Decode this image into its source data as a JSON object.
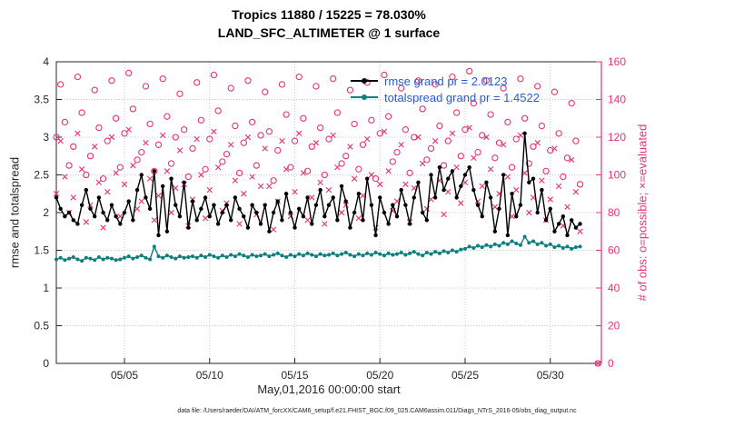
{
  "figure": {
    "title_line1": "Tropics 11880 / 15225 = 78.030%",
    "title_line2": "LAND_SFC_ALTIMETER @ 1 surface",
    "footer": "data file: /Users/raeder/DAI/ATM_forcXX/CAM6_setup/f.e21.FHIST_BGC.f09_025.CAM6assim.011/Diags_NTrS_2016-05/obs_diag_output.nc"
  },
  "legend": {
    "rmse_label": "rmse grand pr = 2.0123",
    "totalspread_label": "totalspread grand pr = 1.4522"
  },
  "colors": {
    "rmse": "#000000",
    "totalspread": "#0d7f7f",
    "obs": "#e8336e",
    "legend_text": "#2a5bd7",
    "grid": "#c9c9c9",
    "axis": "#262626"
  },
  "chart_data": {
    "type": "line",
    "title": "Tropics 11880 / 15225 = 78.030%",
    "subtitle": "LAND_SFC_ALTIMETER @ 1 surface",
    "x_axis": {
      "label": "May,01,2016 00:00:00 start",
      "range": [
        1,
        33
      ],
      "ticks": [
        {
          "x": 5,
          "label": "05/05"
        },
        {
          "x": 10,
          "label": "05/10"
        },
        {
          "x": 15,
          "label": "05/15"
        },
        {
          "x": 20,
          "label": "05/20"
        },
        {
          "x": 25,
          "label": "05/25"
        },
        {
          "x": 30,
          "label": "05/30"
        }
      ]
    },
    "y_left": {
      "label": "rmse and totalspread",
      "range": [
        0,
        4
      ],
      "ticks": [
        0,
        0.5,
        1,
        1.5,
        2,
        2.5,
        3,
        3.5,
        4
      ]
    },
    "y_right": {
      "label": "# of obs: o=possible; ×=evaluated",
      "range": [
        0,
        160
      ],
      "ticks": [
        0,
        20,
        40,
        60,
        80,
        100,
        120,
        140,
        160
      ]
    },
    "time": {
      "start": 1,
      "step": 0.25,
      "n": 124
    },
    "series": [
      {
        "name": "rmse",
        "axis": "left",
        "marker": "dot",
        "grand_mean": 2.0123,
        "values": [
          2.2,
          2.05,
          1.95,
          2.0,
          1.9,
          1.85,
          2.1,
          2.3,
          2.05,
          1.95,
          2.2,
          2.0,
          1.9,
          2.1,
          1.95,
          1.85,
          2.0,
          2.15,
          1.9,
          2.3,
          2.5,
          2.2,
          2.05,
          2.55,
          1.7,
          2.35,
          1.75,
          2.45,
          2.1,
          1.95,
          2.4,
          1.8,
          2.15,
          1.9,
          2.05,
          2.2,
          1.95,
          2.1,
          1.85,
          2.0,
          2.1,
          1.9,
          2.2,
          2.05,
          1.95,
          1.8,
          2.1,
          2.0,
          1.85,
          2.1,
          1.75,
          2.0,
          2.15,
          1.9,
          2.25,
          2.0,
          1.8,
          2.05,
          1.95,
          2.2,
          1.85,
          2.1,
          2.3,
          1.95,
          2.1,
          2.2,
          1.9,
          2.35,
          2.15,
          1.8,
          2.0,
          2.25,
          1.9,
          2.45,
          2.1,
          1.7,
          2.2,
          2.0,
          1.85,
          2.1,
          1.95,
          2.3,
          2.1,
          1.85,
          2.2,
          2.4,
          2.0,
          1.9,
          2.5,
          2.2,
          2.6,
          2.3,
          2.45,
          2.55,
          2.2,
          2.35,
          2.5,
          2.6,
          2.3,
          2.1,
          1.95,
          2.4,
          2.2,
          1.75,
          2.05,
          2.5,
          1.7,
          2.25,
          1.95,
          2.1,
          3.05,
          2.4,
          2.45,
          2.0,
          2.3,
          1.9,
          2.05,
          1.75,
          1.85,
          1.95,
          1.7,
          1.9,
          1.8,
          1.85
        ]
      },
      {
        "name": "totalspread",
        "axis": "left",
        "marker": "dot",
        "grand_mean": 1.4522,
        "values": [
          1.38,
          1.4,
          1.37,
          1.39,
          1.41,
          1.38,
          1.36,
          1.4,
          1.39,
          1.37,
          1.41,
          1.38,
          1.4,
          1.39,
          1.37,
          1.38,
          1.4,
          1.42,
          1.39,
          1.41,
          1.43,
          1.4,
          1.38,
          1.55,
          1.42,
          1.4,
          1.43,
          1.41,
          1.39,
          1.42,
          1.4,
          1.41,
          1.42,
          1.4,
          1.43,
          1.41,
          1.44,
          1.42,
          1.4,
          1.43,
          1.41,
          1.44,
          1.42,
          1.45,
          1.43,
          1.41,
          1.44,
          1.42,
          1.43,
          1.45,
          1.42,
          1.44,
          1.46,
          1.43,
          1.41,
          1.44,
          1.42,
          1.45,
          1.43,
          1.46,
          1.44,
          1.42,
          1.45,
          1.43,
          1.44,
          1.46,
          1.43,
          1.45,
          1.47,
          1.44,
          1.42,
          1.45,
          1.43,
          1.46,
          1.44,
          1.47,
          1.45,
          1.43,
          1.46,
          1.44,
          1.45,
          1.47,
          1.44,
          1.46,
          1.48,
          1.45,
          1.43,
          1.47,
          1.45,
          1.48,
          1.46,
          1.49,
          1.47,
          1.5,
          1.48,
          1.51,
          1.52,
          1.55,
          1.53,
          1.56,
          1.54,
          1.57,
          1.55,
          1.58,
          1.56,
          1.6,
          1.58,
          1.62,
          1.59,
          1.57,
          1.68,
          1.6,
          1.62,
          1.58,
          1.6,
          1.56,
          1.58,
          1.54,
          1.56,
          1.53,
          1.55,
          1.52,
          1.54,
          1.55
        ]
      },
      {
        "name": "possible",
        "axis": "right",
        "marker": "o",
        "values": [
          120,
          148,
          128,
          105,
          115,
          152,
          133,
          100,
          110,
          145,
          125,
          98,
          118,
          150,
          130,
          104,
          122,
          154,
          135,
          108,
          112,
          147,
          127,
          102,
          116,
          151,
          131,
          106,
          120,
          143,
          124,
          99,
          114,
          149,
          129,
          103,
          119,
          153,
          134,
          107,
          111,
          146,
          126,
          101,
          117,
          150,
          128,
          105,
          121,
          144,
          123,
          97,
          113,
          148,
          132,
          104,
          118,
          152,
          130,
          102,
          115,
          147,
          125,
          100,
          119,
          151,
          133,
          106,
          110,
          145,
          127,
          103,
          116,
          149,
          129,
          98,
          122,
          153,
          131,
          107,
          112,
          146,
          124,
          101,
          120,
          150,
          135,
          108,
          114,
          148,
          126,
          105,
          118,
          152,
          133,
          110,
          124,
          155,
          138,
          112,
          121,
          150,
          132,
          109,
          117,
          146,
          128,
          104,
          119,
          151,
          130,
          106,
          115,
          147,
          126,
          102,
          113,
          144,
          122,
          99,
          109,
          138,
          118,
          95
        ]
      },
      {
        "name": "evaluated",
        "axis": "right",
        "marker": "x",
        "values": [
          90,
          118,
          99,
          80,
          88,
          122,
          103,
          75,
          84,
          115,
          96,
          72,
          91,
          120,
          101,
          78,
          95,
          124,
          105,
          82,
          86,
          117,
          98,
          76,
          89,
          121,
          102,
          80,
          93,
          113,
          95,
          73,
          87,
          119,
          100,
          77,
          92,
          123,
          104,
          81,
          85,
          116,
          97,
          74,
          90,
          120,
          99,
          79,
          94,
          114,
          94,
          71,
          86,
          118,
          103,
          78,
          91,
          122,
          101,
          76,
          88,
          117,
          96,
          74,
          92,
          121,
          104,
          80,
          84,
          115,
          98,
          77,
          89,
          119,
          100,
          72,
          95,
          123,
          102,
          81,
          86,
          116,
          95,
          75,
          93,
          120,
          106,
          82,
          87,
          118,
          97,
          79,
          91,
          122,
          104,
          85,
          96,
          125,
          109,
          86,
          94,
          120,
          103,
          83,
          90,
          116,
          99,
          78,
          92,
          121,
          101,
          80,
          88,
          117,
          97,
          76,
          87,
          114,
          94,
          73,
          83,
          108,
          91,
          70
        ]
      }
    ],
    "obs_tail": {
      "x": 32.8,
      "possible": 0,
      "evaluated": 0
    },
    "legend_position": "top-center-inside",
    "grid": true
  }
}
